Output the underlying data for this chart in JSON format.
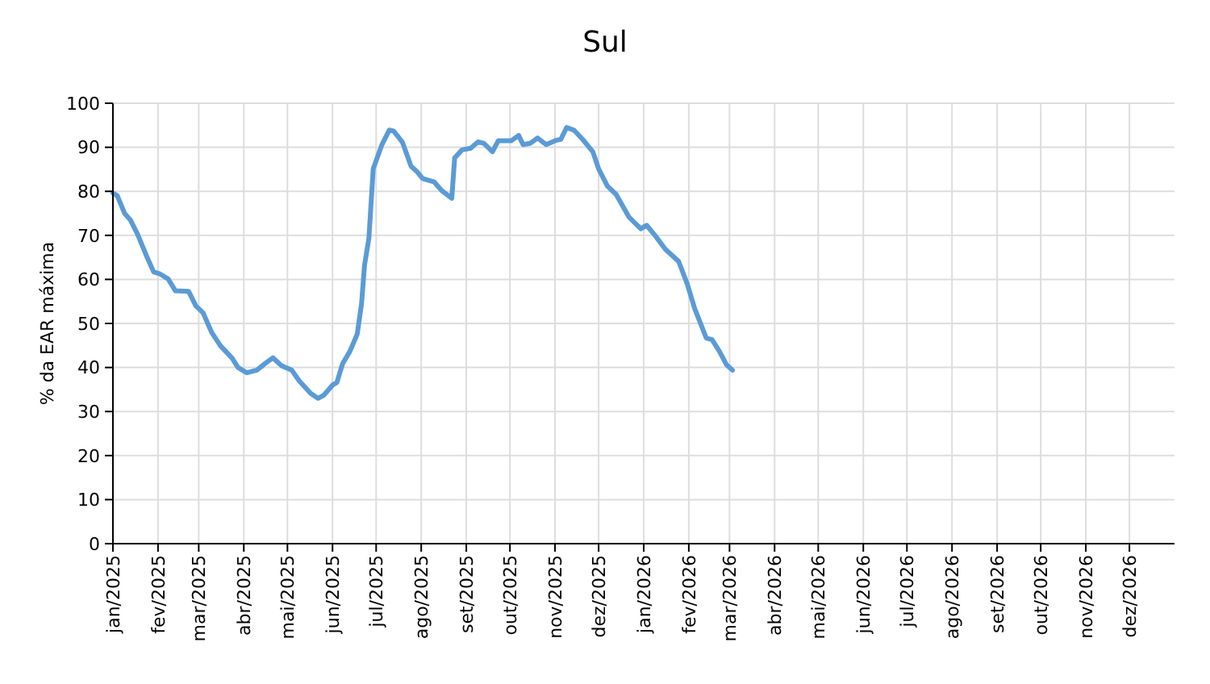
{
  "chart_data": {
    "type": "line",
    "title": "Sul",
    "ylabel": "% da EAR máxima",
    "x": [
      "2025-01-01",
      "2025-01-04",
      "2025-01-09",
      "2025-01-13",
      "2025-01-18",
      "2025-01-24",
      "2025-01-29",
      "2025-02-02",
      "2025-02-08",
      "2025-02-13",
      "2025-02-22",
      "2025-02-27",
      "2025-03-04",
      "2025-03-10",
      "2025-03-16",
      "2025-03-24",
      "2025-03-28",
      "2025-04-03",
      "2025-04-10",
      "2025-04-16",
      "2025-04-21",
      "2025-04-27",
      "2025-05-04",
      "2025-05-09",
      "2025-05-17",
      "2025-05-22",
      "2025-05-26",
      "2025-06-01",
      "2025-06-04",
      "2025-06-08",
      "2025-06-13",
      "2025-06-18",
      "2025-06-21",
      "2025-06-23",
      "2025-06-26",
      "2025-06-29",
      "2025-07-05",
      "2025-07-10",
      "2025-07-13",
      "2025-07-19",
      "2025-07-25",
      "2025-07-29",
      "2025-08-02",
      "2025-08-10",
      "2025-08-15",
      "2025-08-22",
      "2025-08-24",
      "2025-08-29",
      "2025-09-04",
      "2025-09-09",
      "2025-09-13",
      "2025-09-19",
      "2025-09-23",
      "2025-10-02",
      "2025-10-07",
      "2025-10-10",
      "2025-10-15",
      "2025-10-20",
      "2025-10-26",
      "2025-11-02",
      "2025-11-05",
      "2025-11-09",
      "2025-11-14",
      "2025-11-20",
      "2025-11-27",
      "2025-12-01",
      "2025-12-07",
      "2025-12-13",
      "2025-12-22",
      "2025-12-30",
      "2026-01-03",
      "2026-01-09",
      "2026-01-16",
      "2026-01-25",
      "2026-01-31",
      "2026-02-05",
      "2026-02-13",
      "2026-02-17",
      "2026-02-22",
      "2026-02-27",
      "2026-03-03"
    ],
    "series": [
      {
        "color": "#5b9bd5",
        "values": [
          79.6,
          79,
          75,
          73.5,
          70.2,
          65.4,
          61.7,
          61.3,
          60.1,
          57.4,
          57.3,
          54,
          52.4,
          47.9,
          44.9,
          42.1,
          40,
          38.8,
          39.4,
          41,
          42.2,
          40.4,
          39.4,
          37,
          34.1,
          33,
          33.7,
          36,
          36.6,
          40.9,
          43.7,
          47.6,
          54.6,
          63.2,
          69.3,
          85.1,
          90.6,
          93.9,
          93.7,
          91.2,
          85.7,
          84.5,
          82.9,
          82.1,
          80.2,
          78.4,
          87.6,
          89.4,
          89.8,
          91.2,
          90.9,
          89,
          91.5,
          91.5,
          92.7,
          90.6,
          90.9,
          92.1,
          90.6,
          91.6,
          91.8,
          94.5,
          93.9,
          91.8,
          89,
          85.1,
          81.2,
          79.3,
          74.1,
          71.5,
          72.3,
          69.9,
          66.8,
          64.1,
          58.9,
          53.4,
          46.7,
          46.3,
          43.7,
          40.6,
          39.4
        ]
      }
    ],
    "xlim": [
      "2025-01-01",
      "2027-01-01"
    ],
    "xticks": [
      {
        "value": "2025-01-01",
        "label": "jan/2025"
      },
      {
        "value": "2025-02-01",
        "label": "fev/2025"
      },
      {
        "value": "2025-03-01",
        "label": "mar/2025"
      },
      {
        "value": "2025-04-01",
        "label": "abr/2025"
      },
      {
        "value": "2025-05-01",
        "label": "mai/2025"
      },
      {
        "value": "2025-06-01",
        "label": "jun/2025"
      },
      {
        "value": "2025-07-01",
        "label": "jul/2025"
      },
      {
        "value": "2025-08-01",
        "label": "ago/2025"
      },
      {
        "value": "2025-09-01",
        "label": "set/2025"
      },
      {
        "value": "2025-10-01",
        "label": "out/2025"
      },
      {
        "value": "2025-11-01",
        "label": "nov/2025"
      },
      {
        "value": "2025-12-01",
        "label": "dez/2025"
      },
      {
        "value": "2026-01-01",
        "label": "jan/2026"
      },
      {
        "value": "2026-02-01",
        "label": "fev/2026"
      },
      {
        "value": "2026-03-01",
        "label": "mar/2026"
      },
      {
        "value": "2026-04-01",
        "label": "abr/2026"
      },
      {
        "value": "2026-05-01",
        "label": "mai/2026"
      },
      {
        "value": "2026-06-01",
        "label": "jun/2026"
      },
      {
        "value": "2026-07-01",
        "label": "jul/2026"
      },
      {
        "value": "2026-08-01",
        "label": "ago/2026"
      },
      {
        "value": "2026-09-01",
        "label": "set/2026"
      },
      {
        "value": "2026-10-01",
        "label": "out/2026"
      },
      {
        "value": "2026-11-01",
        "label": "nov/2026"
      },
      {
        "value": "2026-12-01",
        "label": "dez/2026"
      }
    ],
    "ylim": [
      0,
      100
    ],
    "yticks": [
      0,
      10,
      20,
      30,
      40,
      50,
      60,
      70,
      80,
      90,
      100
    ],
    "grid": true
  }
}
